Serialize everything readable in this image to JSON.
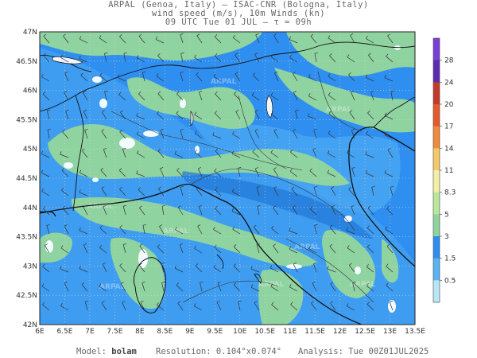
{
  "header": {
    "line1": "ARPAL (Genoa, Italy)  —  ISAC-CNR (Bologna, Italy)",
    "line2": "wind speed (m/s), 10m Winds (kn)",
    "line3": "09 UTC Tue 01 JUL  —  τ = 09h"
  },
  "map": {
    "lat_labels": [
      "47N",
      "46.5N",
      "46N",
      "45.5N",
      "45N",
      "44.5N",
      "44N",
      "43.5N",
      "43N",
      "42.5N",
      "42N"
    ],
    "lon_labels": [
      "6E",
      "6.5E",
      "7E",
      "7.5E",
      "8E",
      "8.5E",
      "9E",
      "9.5E",
      "10E",
      "10.5E",
      "11E",
      "11.5E",
      "12E",
      "12.5E",
      "13E",
      "13.5E"
    ],
    "watermark": "ARPAL"
  },
  "legend": {
    "ticks": [
      "28",
      "24",
      "20",
      "17",
      "14",
      "11",
      "8.3",
      "5",
      "3",
      "1.5",
      "0.5"
    ],
    "colors": [
      "#7a3fd6",
      "#5b2bb0",
      "#c23b2b",
      "#e55a2b",
      "#f08a3a",
      "#f5c86a",
      "#f2f0a8",
      "#b9e89c",
      "#8fd3a0",
      "#2d8ef0",
      "#5ab2f0",
      "#b9e6f5"
    ]
  },
  "footer": {
    "model_label": "Model:",
    "model_value": "bolam",
    "resolution_label": "Resolution:",
    "resolution_value": "0.104°x0.074°",
    "analysis_label": "Analysis:",
    "analysis_value": "Tue 00Z01JUL2025"
  }
}
